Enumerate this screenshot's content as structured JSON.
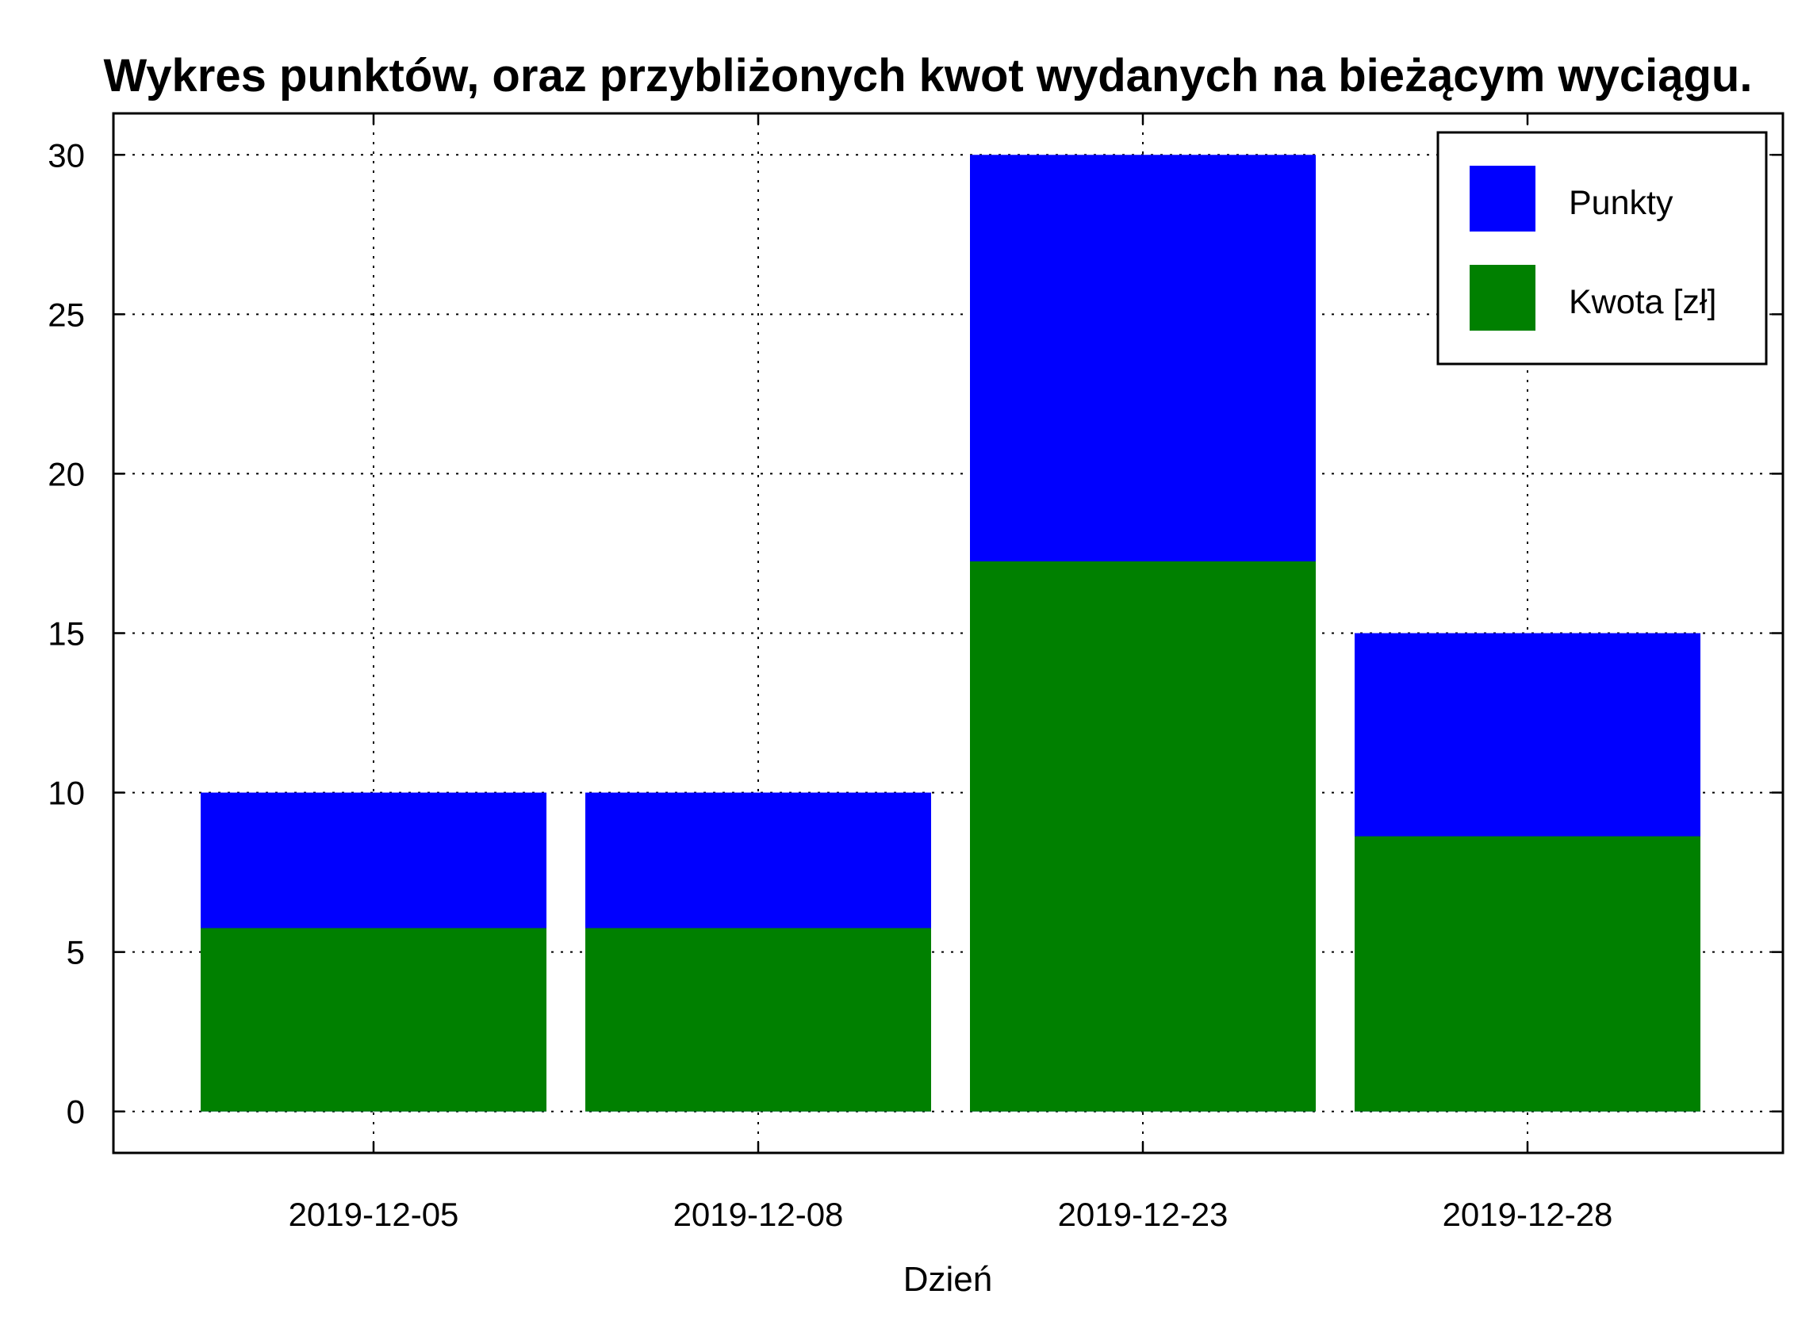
{
  "chart_data": {
    "type": "bar",
    "stacked": false,
    "title": "Wykres punktów, oraz przybliżonych kwot wydanych na bieżącym wyciągu.",
    "xlabel": "Dzień",
    "ylabel": "",
    "categories": [
      "2019-12-05",
      "2019-12-08",
      "2019-12-23",
      "2019-12-28"
    ],
    "series": [
      {
        "name": "Punkty",
        "color": "#0000ff",
        "values": [
          10,
          10,
          30,
          15
        ]
      },
      {
        "name": "Kwota [zł]",
        "color": "#008000",
        "values": [
          5.75,
          5.75,
          17.25,
          8.63
        ]
      }
    ],
    "ylim": [
      -1.3,
      31.3
    ],
    "yticks": [
      "0",
      "5",
      "10",
      "15",
      "20",
      "25",
      "30"
    ],
    "grid": true,
    "legend": "top-right"
  }
}
